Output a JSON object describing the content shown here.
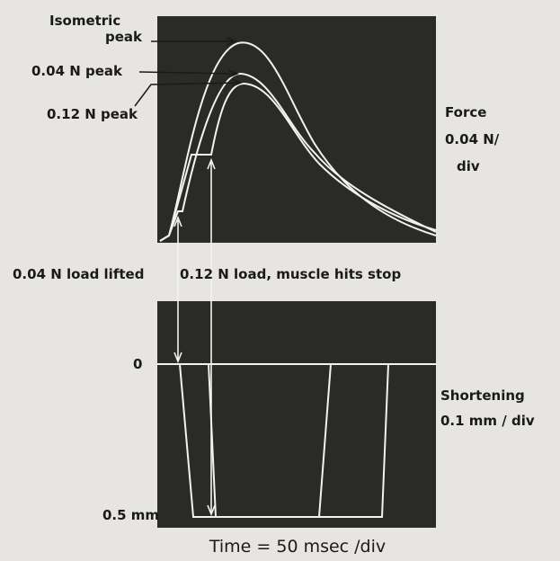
{
  "figure": {
    "force_panel": {
      "isometric_label": [
        "Isometric",
        "peak"
      ],
      "peak_04": "0.04 N peak",
      "peak_12": "0.12 N peak",
      "axis_label": [
        "Force",
        "0.04 N/",
        "div"
      ]
    },
    "events": {
      "load_04": "0.04 N load lifted",
      "load_12": "0.12 N load, muscle hits stop"
    },
    "shortening_panel": {
      "zero_label": "0",
      "max_label": "0.5 mm",
      "axis_label": [
        "Shortening",
        "0.1 mm / div"
      ]
    },
    "time_label": "Time = 50 msec /div"
  }
}
